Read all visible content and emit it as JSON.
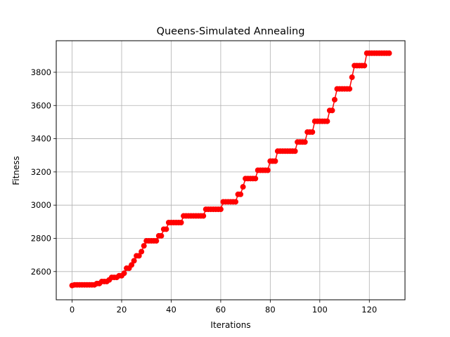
{
  "chart_data": {
    "type": "line",
    "title": "Queens-Simulated Annealing",
    "xlabel": "Iterations",
    "ylabel": "Fitness",
    "xlim": [
      -6.4,
      134.4
    ],
    "ylim": [
      2430,
      3990
    ],
    "xticks": [
      0,
      20,
      40,
      60,
      80,
      100,
      120
    ],
    "yticks": [
      2600,
      2800,
      3000,
      3200,
      3400,
      3600,
      3800
    ],
    "grid": true,
    "series_color": "#ff0000",
    "marker": "circle",
    "x": [
      0,
      1,
      2,
      3,
      4,
      5,
      6,
      7,
      8,
      9,
      10,
      11,
      12,
      13,
      14,
      15,
      16,
      17,
      18,
      19,
      20,
      21,
      22,
      23,
      24,
      25,
      26,
      27,
      28,
      29,
      30,
      31,
      32,
      33,
      34,
      35,
      36,
      37,
      38,
      39,
      40,
      41,
      42,
      43,
      44,
      45,
      46,
      47,
      48,
      49,
      50,
      51,
      52,
      53,
      54,
      55,
      56,
      57,
      58,
      59,
      60,
      61,
      62,
      63,
      64,
      65,
      66,
      67,
      68,
      69,
      70,
      71,
      72,
      73,
      74,
      75,
      76,
      77,
      78,
      79,
      80,
      81,
      82,
      83,
      84,
      85,
      86,
      87,
      88,
      89,
      90,
      91,
      92,
      93,
      94,
      95,
      96,
      97,
      98,
      99,
      100,
      101,
      102,
      103,
      104,
      105,
      106,
      107,
      108,
      109,
      110,
      111,
      112,
      113,
      114,
      115,
      116,
      117,
      118,
      119,
      120,
      121,
      122,
      123,
      124,
      125,
      126,
      127,
      128
    ],
    "y": [
      2516,
      2520,
      2520,
      2520,
      2520,
      2520,
      2520,
      2520,
      2520,
      2520,
      2528,
      2528,
      2540,
      2540,
      2540,
      2550,
      2565,
      2565,
      2565,
      2575,
      2575,
      2590,
      2620,
      2620,
      2640,
      2665,
      2695,
      2695,
      2720,
      2755,
      2785,
      2785,
      2785,
      2785,
      2785,
      2815,
      2815,
      2855,
      2855,
      2895,
      2895,
      2895,
      2895,
      2895,
      2895,
      2935,
      2935,
      2935,
      2935,
      2935,
      2935,
      2935,
      2935,
      2935,
      2975,
      2975,
      2975,
      2975,
      2975,
      2975,
      2975,
      3020,
      3020,
      3020,
      3020,
      3020,
      3020,
      3065,
      3065,
      3110,
      3160,
      3160,
      3160,
      3160,
      3160,
      3210,
      3210,
      3210,
      3210,
      3210,
      3265,
      3265,
      3265,
      3325,
      3325,
      3325,
      3325,
      3325,
      3325,
      3325,
      3325,
      3380,
      3380,
      3380,
      3380,
      3440,
      3440,
      3440,
      3505,
      3505,
      3505,
      3505,
      3505,
      3505,
      3570,
      3570,
      3635,
      3700,
      3700,
      3700,
      3700,
      3700,
      3700,
      3770,
      3840,
      3840,
      3840,
      3840,
      3840,
      3915,
      3915,
      3915,
      3915,
      3915,
      3915,
      3915,
      3915,
      3915,
      3915
    ]
  }
}
